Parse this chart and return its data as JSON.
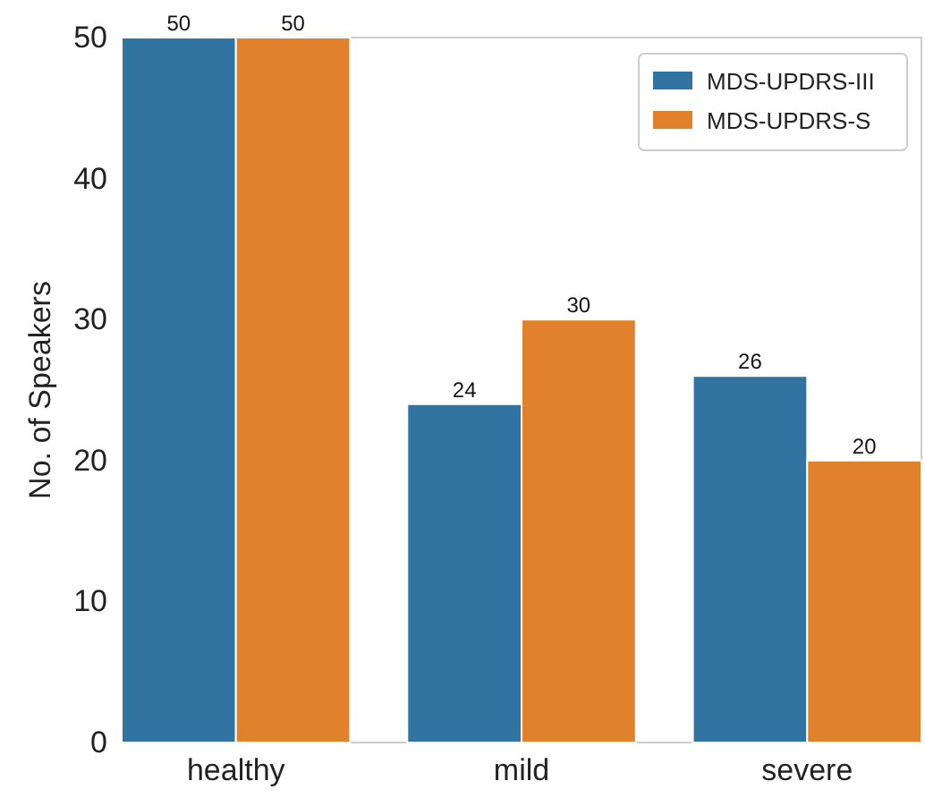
{
  "chart_data": {
    "type": "bar",
    "ylabel": "No. of Speakers",
    "categories": [
      "healthy",
      "mild",
      "severe"
    ],
    "series": [
      {
        "name": "MDS-UPDRS-III",
        "color": "#3274a1",
        "values": [
          50,
          24,
          26
        ]
      },
      {
        "name": "MDS-UPDRS-S",
        "color": "#e1812c",
        "values": [
          50,
          30,
          20
        ]
      }
    ],
    "ylim": [
      0,
      50
    ],
    "yticks": [
      0,
      10,
      20,
      30,
      40,
      50
    ],
    "data_labels": true,
    "legend": "top right",
    "grid": false
  }
}
